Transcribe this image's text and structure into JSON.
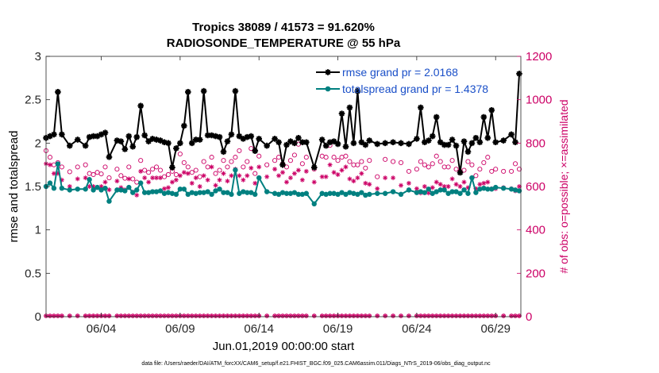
{
  "chart_data": {
    "type": "line",
    "title_line1": "Tropics 38089 / 41573 = 91.620%",
    "title_line2": "RADIOSONDE_TEMPERATURE @ 55 hPa",
    "ylabel_left": "rmse and totalspread",
    "ylabel_right": "# of obs: o=possible; ×=assimilated",
    "xlabel": "Jun.01,2019 00:00:00 start",
    "footer": "data file: /Users/raeder/DAI/ATM_forcXX/CAM6_setup/f.e21.FHIST_BGC.f09_025.CAM6assim.011/Diags_NTrS_2019-06/obs_diag_output.nc",
    "ylim_left": [
      0,
      3
    ],
    "ylim_right": [
      0,
      1200
    ],
    "xlim": [
      0.5,
      30.6
    ],
    "yticks_left": [
      "0",
      "0.5",
      "1",
      "1.5",
      "2",
      "2.5",
      "3"
    ],
    "yticks_right": [
      "0",
      "200",
      "400",
      "600",
      "800",
      "1000",
      "1200"
    ],
    "xtick_values": [
      4,
      9,
      14,
      19,
      24,
      29
    ],
    "xtick_labels": [
      "06/04",
      "06/09",
      "06/14",
      "06/19",
      "06/24",
      "06/29"
    ],
    "x": [
      0.5,
      0.75,
      1,
      1.25,
      1.5,
      2,
      2.5,
      3,
      3.25,
      3.5,
      3.75,
      4,
      4.25,
      4.5,
      5,
      5.25,
      5.5,
      5.75,
      6,
      6.25,
      6.5,
      6.75,
      7,
      7.25,
      7.5,
      7.75,
      8,
      8.25,
      8.5,
      8.75,
      9,
      9.25,
      9.5,
      9.75,
      10,
      10.25,
      10.5,
      10.75,
      11,
      11.25,
      11.5,
      11.75,
      12,
      12.25,
      12.5,
      12.75,
      13,
      13.25,
      13.5,
      13.75,
      14,
      14.5,
      15,
      15.25,
      15.5,
      15.75,
      16,
      16.25,
      16.5,
      16.75,
      17,
      17.5,
      18,
      18.25,
      18.5,
      18.75,
      19,
      19.25,
      19.5,
      19.75,
      20,
      20.25,
      20.5,
      20.75,
      21,
      21.5,
      22,
      22.5,
      23,
      23.5,
      24,
      24.25,
      24.5,
      24.75,
      25,
      25.25,
      25.5,
      25.75,
      26,
      26.25,
      26.5,
      26.75,
      27,
      27.25,
      27.5,
      27.75,
      28,
      28.25,
      28.5,
      28.75,
      29,
      29.5,
      30,
      30.25,
      30.5
    ],
    "legend": [
      {
        "label": "rmse grand pr = 2.0168",
        "color": "#000000"
      },
      {
        "label": "totalspread grand pr = 1.4378",
        "color": "#008080"
      }
    ],
    "series": [
      {
        "name": "rmse",
        "axis": "left",
        "color": "#000000",
        "values": [
          2.06,
          2.08,
          2.1,
          2.59,
          2.1,
          1.97,
          2.04,
          1.97,
          2.07,
          2.08,
          2.08,
          2.1,
          2.12,
          1.84,
          2.03,
          2.02,
          1.93,
          2.08,
          1.96,
          2.07,
          2.43,
          2.09,
          2.02,
          2.05,
          2.04,
          2.03,
          2.01,
          2.0,
          1.72,
          1.94,
          2.0,
          2.2,
          2.59,
          2.0,
          2.04,
          2.04,
          2.6,
          2.09,
          2.09,
          2.08,
          2.07,
          1.9,
          2.02,
          2.1,
          2.6,
          2.08,
          2.05,
          2.07,
          2.08,
          1.91,
          2.05,
          1.97,
          2.05,
          2.01,
          1.75,
          1.98,
          2.02,
          2.0,
          2.06,
          2.01,
          2.01,
          1.72,
          2.04,
          1.97,
          2.01,
          2.02,
          1.99,
          2.34,
          1.96,
          2.41,
          2.0,
          2.6,
          2.01,
          1.98,
          2.03,
          1.99,
          2.0,
          2.01,
          2.0,
          1.99,
          2.05,
          2.41,
          2.01,
          2.03,
          2.08,
          2.3,
          2.01,
          1.98,
          1.98,
          2.04,
          1.97,
          1.66,
          2.02,
          1.9,
          2.0,
          2.06,
          2.01,
          2.3,
          2.06,
          2.38,
          2.01,
          2.03,
          2.1,
          2.01,
          2.8
        ]
      },
      {
        "name": "totalspread",
        "axis": "left",
        "color": "#008080",
        "values": [
          1.5,
          1.54,
          1.48,
          1.76,
          1.48,
          1.46,
          1.47,
          1.47,
          1.58,
          1.46,
          1.49,
          1.46,
          1.48,
          1.33,
          1.46,
          1.46,
          1.45,
          1.49,
          1.43,
          1.46,
          1.54,
          1.43,
          1.43,
          1.44,
          1.44,
          1.45,
          1.42,
          1.43,
          1.42,
          1.41,
          1.47,
          1.47,
          1.41,
          1.43,
          1.42,
          1.43,
          1.43,
          1.44,
          1.41,
          1.45,
          1.47,
          1.43,
          1.43,
          1.41,
          1.69,
          1.42,
          1.44,
          1.43,
          1.43,
          1.41,
          1.6,
          1.44,
          1.42,
          1.41,
          1.43,
          1.42,
          1.42,
          1.43,
          1.41,
          1.41,
          1.42,
          1.3,
          1.42,
          1.41,
          1.42,
          1.42,
          1.41,
          1.43,
          1.41,
          1.43,
          1.42,
          1.41,
          1.43,
          1.4,
          1.41,
          1.42,
          1.42,
          1.44,
          1.41,
          1.46,
          1.43,
          1.44,
          1.43,
          1.47,
          1.42,
          1.44,
          1.46,
          1.46,
          1.42,
          1.44,
          1.44,
          1.42,
          1.46,
          1.42,
          1.6,
          1.43,
          1.47,
          1.48,
          1.47,
          1.47,
          1.49,
          1.48,
          1.47,
          1.46,
          1.45
        ]
      },
      {
        "name": "possible",
        "axis": "right",
        "color": "#cc0066",
        "values": [
          765,
          735,
          700,
          710,
          690,
          668,
          690,
          700,
          660,
          655,
          665,
          658,
          690,
          640,
          680,
          650,
          638,
          690,
          635,
          620,
          720,
          675,
          665,
          680,
          690,
          675,
          645,
          655,
          670,
          655,
          750,
          710,
          690,
          665,
          675,
          645,
          715,
          690,
          735,
          660,
          675,
          720,
          690,
          715,
          735,
          765,
          690,
          715,
          775,
          660,
          740,
          700,
          720,
          735,
          705,
          690,
          720,
          745,
          795,
          705,
          735,
          680,
          740,
          735,
          790,
          735,
          720,
          735,
          740,
          715,
          700,
          700,
          715,
          685,
          720,
          645,
          725,
          715,
          710,
          670,
          680,
          715,
          700,
          690,
          705,
          740,
          715,
          690,
          690,
          720,
          680,
          670,
          675,
          715,
          700,
          650,
          680,
          710,
          735,
          670,
          680,
          670,
          670,
          705,
          680
        ]
      },
      {
        "name": "assimilated",
        "axis": "right",
        "color": "#cc0066",
        "values": [
          705,
          700,
          660,
          660,
          630,
          600,
          635,
          640,
          600,
          600,
          595,
          600,
          620,
          585,
          625,
          595,
          585,
          635,
          575,
          560,
          670,
          640,
          620,
          640,
          640,
          640,
          590,
          595,
          620,
          630,
          650,
          665,
          660,
          615,
          640,
          600,
          650,
          630,
          690,
          605,
          630,
          660,
          625,
          650,
          680,
          650,
          630,
          650,
          685,
          615,
          690,
          645,
          680,
          650,
          665,
          620,
          640,
          660,
          675,
          630,
          670,
          620,
          645,
          645,
          700,
          665,
          655,
          675,
          690,
          635,
          625,
          640,
          660,
          615,
          610,
          590,
          640,
          640,
          605,
          615,
          590,
          570,
          600,
          570,
          595,
          620,
          610,
          600,
          600,
          635,
          610,
          600,
          620,
          595,
          640,
          590,
          610,
          615,
          620,
          590,
          590,
          595,
          590,
          580,
          600
        ]
      }
    ]
  }
}
